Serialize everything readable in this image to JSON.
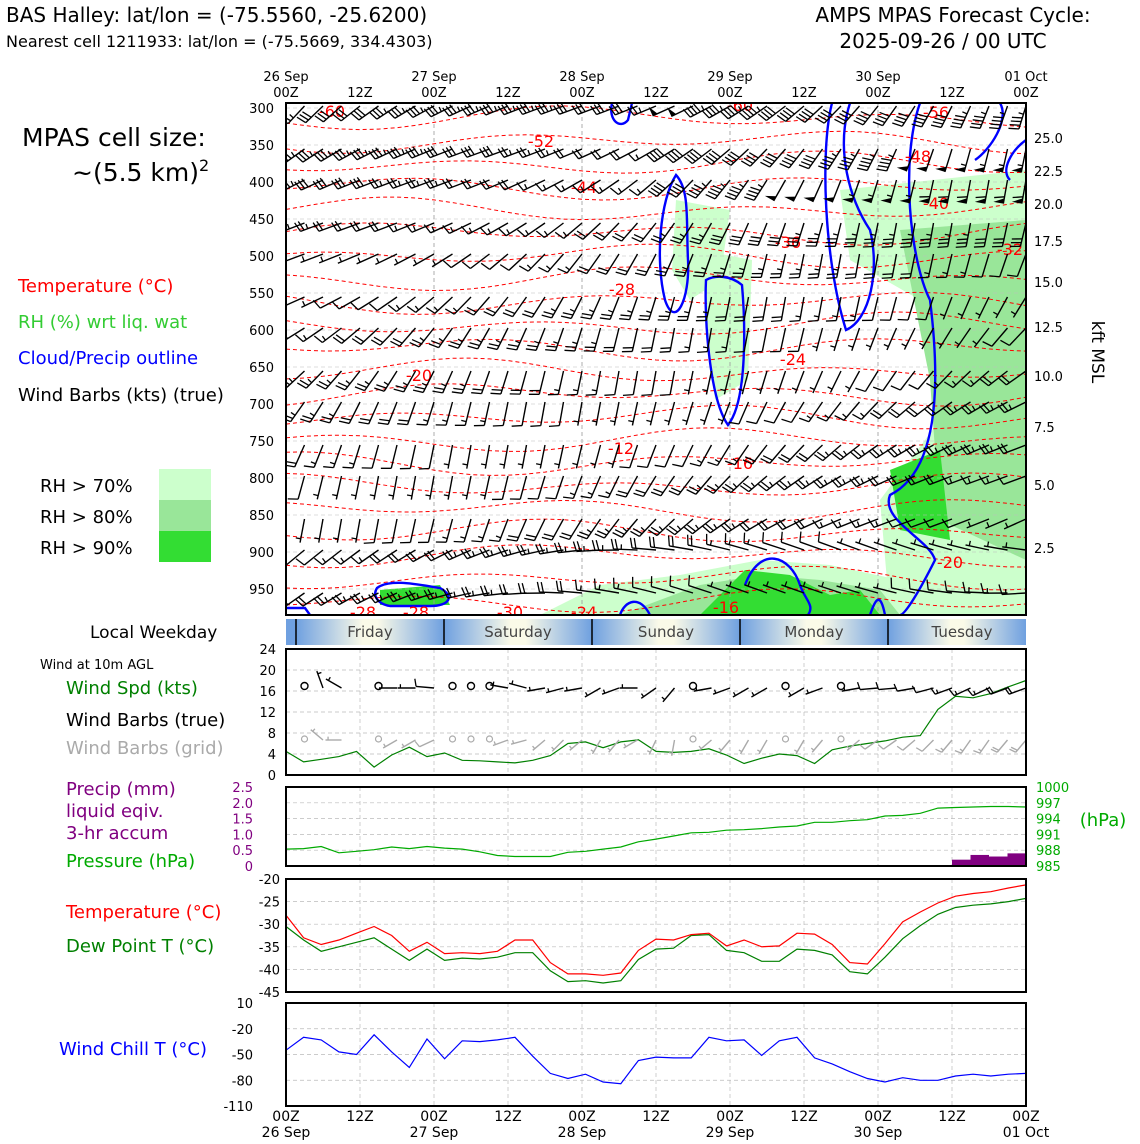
{
  "header": {
    "station_line": "BAS Halley: lat/lon = (-75.5560, -25.6200)",
    "cell_line": "Nearest cell 1211933: lat/lon = (-75.5669, 334.4303)",
    "model_line": "AMPS MPAS Forecast Cycle:",
    "cycle_line": "2025-09-26 / 00 UTC"
  },
  "legend": {
    "cell_size_1": "MPAS cell size:",
    "cell_size_2": "~(5.5 km)",
    "cell_size_sup": "2",
    "temp_label": "Temperature (°C)",
    "rh_label": "RH (%) wrt liq. wat",
    "cloud_label": "Cloud/Precip outline",
    "barb_label": "Wind Barbs (kts) (true)",
    "rh70": "RH > 70%",
    "rh80": "RH > 80%",
    "rh90": "RH > 90%",
    "local_weekday": "Local Weekday",
    "wind10m": "Wind at 10m AGL",
    "wind_spd": "Wind Spd (kts)",
    "barbs_true": "Wind Barbs (true)",
    "barbs_grid": "Wind Barbs (grid)",
    "precip_1": "Precip (mm)",
    "precip_2": "liquid eqiv.",
    "precip_3": "3-hr accum",
    "pressure": "Pressure (hPa)",
    "temp2": "Temperature (°C)",
    "dewpt": "Dew Point T (°C)",
    "windchill": "Wind Chill T (°C)",
    "kft": "kft MSL",
    "hpa": "(hPa)"
  },
  "colors": {
    "temperature": "#ff0000",
    "rh_text": "#33cc33",
    "cloud": "#0000ff",
    "rh70": "#ccffcc",
    "rh80": "#99e699",
    "rh90": "#33dd33",
    "wind_spd": "#008000",
    "grid_barb": "#aaaaaa",
    "precip": "#800080",
    "pressure": "#00aa00",
    "dewpoint": "#008000",
    "windchill": "#0000ff"
  },
  "chart_data": [
    {
      "type": "heatmap",
      "name": "cross-section",
      "y_levels_hpa": [
        "300",
        "350",
        "400",
        "450",
        "500",
        "550",
        "600",
        "650",
        "700",
        "750",
        "800",
        "850",
        "900",
        "950"
      ],
      "kft_ticks": [
        "25.0",
        "22.5",
        "20.0",
        "17.5",
        "15.0",
        "12.5",
        "10.0",
        "7.5",
        "5.0",
        "2.5"
      ],
      "top_day_labels": [
        "26 Sep",
        "27 Sep",
        "28 Sep",
        "29 Sep",
        "30 Sep",
        "01 Oct"
      ],
      "top_hour_labels": [
        "00Z",
        "12Z",
        "00Z",
        "12Z",
        "00Z",
        "12Z",
        "00Z",
        "12Z",
        "00Z",
        "12Z",
        "00Z"
      ],
      "temperature_labels": [
        "-60",
        "-52",
        "-44",
        "-40",
        "-48",
        "-56",
        "-60",
        "-36",
        "-28",
        "-32",
        "-24",
        "-20",
        "-16",
        "-12",
        "-20",
        "-28",
        "-28",
        "-30",
        "-24",
        "-16"
      ],
      "weekdays": [
        "Friday",
        "Saturday",
        "Sunday",
        "Monday",
        "Tuesday"
      ]
    },
    {
      "type": "line",
      "name": "wind10m",
      "ylim": [
        0,
        24
      ],
      "yticks": [
        "24",
        "20",
        "16",
        "12",
        "8",
        "4",
        "0"
      ],
      "series": [
        {
          "name": "Wind Spd (kts)",
          "values": [
            4.5,
            2.5,
            3,
            3.5,
            4.5,
            1.5,
            3.8,
            5.3,
            3.5,
            4.2,
            2.8,
            2.7,
            2.5,
            2.3,
            2.8,
            3.7,
            6,
            6.3,
            5.2,
            6.3,
            6.7,
            4.5,
            4.3,
            4.5,
            5,
            3.8,
            2.2,
            3.2,
            4,
            3.7,
            2.2,
            4.8,
            5.5,
            6,
            6.5,
            7.2,
            7.5,
            12.5,
            15,
            14.7,
            15.5,
            16.8,
            18
          ]
        }
      ],
      "calm_hours": [
        3,
        15,
        27,
        30,
        33,
        66,
        81,
        90
      ],
      "barbs_true": [
        {
          "h": 6,
          "spd": 5,
          "dir": 340
        },
        {
          "h": 9,
          "spd": 5,
          "dir": 300
        },
        {
          "h": 18,
          "spd": 5,
          "dir": 270
        },
        {
          "h": 21,
          "spd": 5,
          "dir": 270
        },
        {
          "h": 24,
          "spd": 10,
          "dir": 275
        },
        {
          "h": 36,
          "spd": 5,
          "dir": 280
        },
        {
          "h": 39,
          "spd": 5,
          "dir": 285
        },
        {
          "h": 42,
          "spd": 5,
          "dir": 260
        },
        {
          "h": 45,
          "spd": 5,
          "dir": 255
        },
        {
          "h": 48,
          "spd": 5,
          "dir": 260
        },
        {
          "h": 51,
          "spd": 5,
          "dir": 240
        },
        {
          "h": 54,
          "spd": 5,
          "dir": 250
        },
        {
          "h": 57,
          "spd": 5,
          "dir": 270
        },
        {
          "h": 60,
          "spd": 5,
          "dir": 235
        },
        {
          "h": 63,
          "spd": 5,
          "dir": 220
        },
        {
          "h": 69,
          "spd": 5,
          "dir": 260
        },
        {
          "h": 72,
          "spd": 5,
          "dir": 250
        },
        {
          "h": 75,
          "spd": 5,
          "dir": 240
        },
        {
          "h": 78,
          "spd": 5,
          "dir": 240
        },
        {
          "h": 84,
          "spd": 5,
          "dir": 240
        },
        {
          "h": 87,
          "spd": 5,
          "dir": 250
        },
        {
          "h": 93,
          "spd": 5,
          "dir": 260
        },
        {
          "h": 96,
          "spd": 10,
          "dir": 265
        },
        {
          "h": 99,
          "spd": 10,
          "dir": 265
        },
        {
          "h": 102,
          "spd": 10,
          "dir": 260
        },
        {
          "h": 105,
          "spd": 10,
          "dir": 255
        },
        {
          "h": 108,
          "spd": 15,
          "dir": 250
        },
        {
          "h": 111,
          "spd": 15,
          "dir": 245
        },
        {
          "h": 114,
          "spd": 15,
          "dir": 245
        },
        {
          "h": 117,
          "spd": 20,
          "dir": 250
        },
        {
          "h": 120,
          "spd": 20,
          "dir": 250
        }
      ]
    },
    {
      "type": "bar",
      "name": "precip",
      "ylim": [
        0,
        2.5
      ],
      "yticks": [
        "2.5",
        "2.0",
        "1.5",
        "1.0",
        "0.5",
        "0"
      ],
      "right_ticks": [
        "1000",
        "997",
        "994",
        "991",
        "988",
        "985"
      ],
      "x_hours": [
        111,
        114,
        117,
        120
      ],
      "values": [
        0.2,
        0.35,
        0.3,
        0.4
      ]
    },
    {
      "type": "line",
      "name": "pressure",
      "ylim": [
        985,
        1000
      ],
      "series": [
        {
          "name": "Pressure (hPa)",
          "values": [
            988.2,
            988.3,
            988.7,
            987.5,
            987.8,
            988.1,
            988.6,
            988.3,
            988.7,
            988.4,
            988.2,
            987.7,
            987,
            986.8,
            986.8,
            986.8,
            987.6,
            987.8,
            988.2,
            988.6,
            989.6,
            990.1,
            990.7,
            991.3,
            991.4,
            991.8,
            991.9,
            992.1,
            992.4,
            992.6,
            993.3,
            993.3,
            993.6,
            993.8,
            994.5,
            994.6,
            995,
            996,
            996.1,
            996.2,
            996.3,
            996.3,
            996.2
          ]
        }
      ]
    },
    {
      "type": "line",
      "name": "temperature",
      "ylim": [
        -45,
        -20
      ],
      "yticks": [
        "-20",
        "-25",
        "-30",
        "-35",
        "-40",
        "-45"
      ],
      "series": [
        {
          "name": "Temperature (°C)",
          "values": [
            -28,
            -33,
            -34.5,
            -33.5,
            -32,
            -30.5,
            -32.5,
            -36,
            -34,
            -36.5,
            -36.3,
            -36.5,
            -36,
            -33.5,
            -33.5,
            -38.5,
            -41,
            -41,
            -41.3,
            -40.8,
            -35.8,
            -33.3,
            -33.5,
            -32.3,
            -32,
            -34.8,
            -33.5,
            -35,
            -34.8,
            -32,
            -32.2,
            -34.5,
            -38.5,
            -38.8,
            -34.3,
            -29.5,
            -27.3,
            -25.3,
            -23.8,
            -23.2,
            -22.8,
            -22,
            -21.3
          ]
        },
        {
          "name": "Dew Point T (°C)",
          "values": [
            -30.5,
            -33.5,
            -36,
            -35,
            -34,
            -33,
            -35.5,
            -38,
            -35.5,
            -38,
            -37.5,
            -37.7,
            -37.3,
            -36.3,
            -36.3,
            -40.3,
            -42.7,
            -42.5,
            -43,
            -42.5,
            -37.8,
            -35.5,
            -35.3,
            -32.5,
            -32.3,
            -35.8,
            -36.3,
            -38.2,
            -38.2,
            -35.5,
            -35.8,
            -36.8,
            -40.5,
            -41,
            -37.3,
            -33.2,
            -30.3,
            -27.8,
            -26.3,
            -25.8,
            -25.5,
            -25,
            -24.3
          ]
        }
      ]
    },
    {
      "type": "line",
      "name": "windchill",
      "ylim": [
        -110,
        10
      ],
      "yticks": [
        "10",
        "-20",
        "-50",
        "-80",
        "-110"
      ],
      "bottom_hour_labels": [
        "00Z",
        "12Z",
        "00Z",
        "12Z",
        "00Z",
        "12Z",
        "00Z",
        "12Z",
        "00Z",
        "12Z",
        "00Z"
      ],
      "bottom_day_labels": [
        "26 Sep",
        "27 Sep",
        "28 Sep",
        "29 Sep",
        "30 Sep",
        "01 Oct"
      ],
      "series": [
        {
          "name": "Wind Chill T (°C)",
          "values": [
            -45,
            -30,
            -33,
            -47,
            -50,
            -27,
            -47,
            -65,
            -32,
            -55,
            -34,
            -35,
            -33,
            -30,
            -52,
            -72,
            -78,
            -73,
            -82,
            -84,
            -57,
            -53,
            -54,
            -54,
            -30,
            -34,
            -33,
            -51,
            -34,
            -30,
            -54,
            -61,
            -70,
            -78,
            -82,
            -77,
            -80,
            -80,
            -75,
            -73,
            -75,
            -73,
            -72
          ]
        }
      ]
    }
  ]
}
